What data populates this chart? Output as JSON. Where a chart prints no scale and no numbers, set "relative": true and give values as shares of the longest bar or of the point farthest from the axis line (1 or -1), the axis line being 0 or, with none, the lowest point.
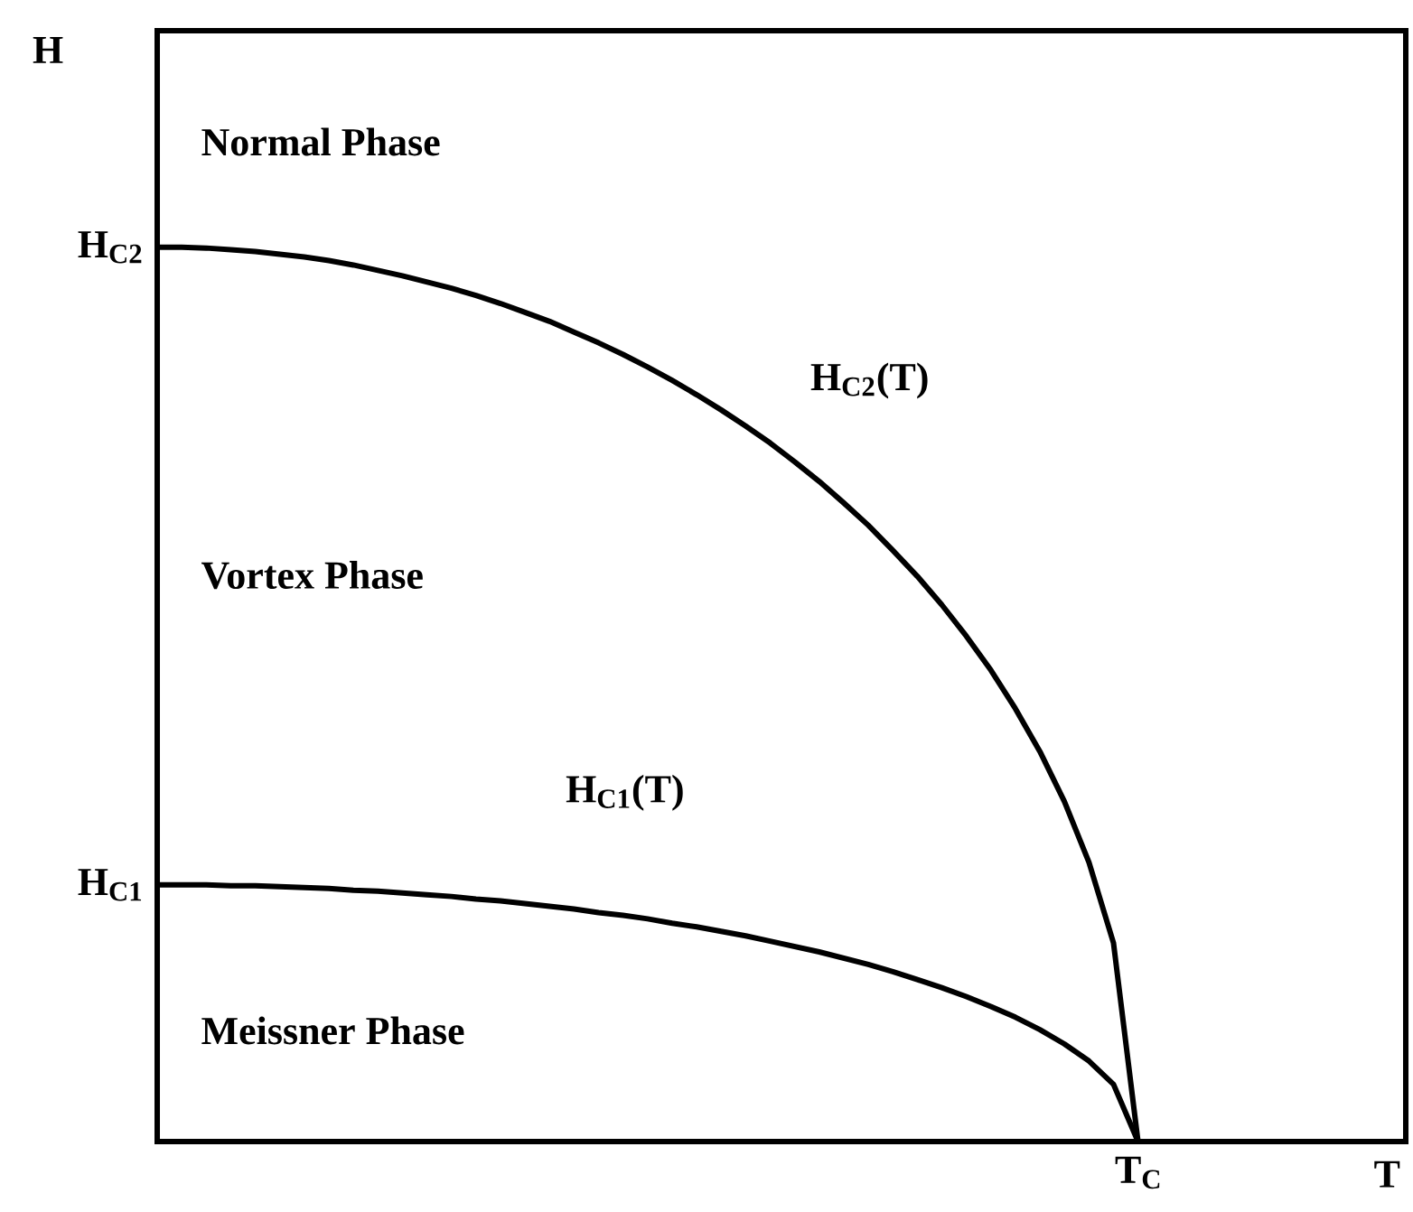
{
  "chart_data": {
    "type": "line",
    "relative": true,
    "categories": [
      null,
      null,
      null,
      null,
      null,
      null,
      null,
      null,
      null,
      null,
      null,
      null,
      null,
      null,
      null,
      null,
      null,
      null,
      null,
      null,
      null,
      null,
      null,
      null,
      null,
      null,
      null,
      null,
      null,
      null,
      null,
      null,
      null,
      null,
      null,
      null,
      null,
      null,
      null,
      null,
      null
    ],
    "series": [
      {
        "name": "H$_{C2}$(T)",
        "color": "#000000",
        "values": [
          1,
          1,
          0.999,
          0.997,
          0.995,
          0.992,
          0.989,
          0.985,
          0.98,
          0.974,
          0.968,
          0.961,
          0.954,
          0.946,
          0.937,
          0.927,
          0.917,
          0.905,
          0.893,
          0.88,
          0.866,
          0.851,
          0.835,
          0.818,
          0.8,
          0.781,
          0.76,
          0.738,
          0.714,
          0.689,
          0.661,
          0.632,
          0.6,
          0.565,
          0.527,
          0.484,
          0.436,
          0.38,
          0.312,
          0.222,
          0
        ]
      },
      {
        "name": "H$_{C1}$(T)",
        "color": "#000000",
        "values": [
          0.287,
          0.287,
          0.287,
          0.286,
          0.286,
          0.285,
          0.284,
          0.283,
          0.281,
          0.28,
          0.278,
          0.276,
          0.274,
          0.271,
          0.269,
          0.266,
          0.263,
          0.26,
          0.256,
          0.253,
          0.249,
          0.244,
          0.24,
          0.235,
          0.23,
          0.224,
          0.218,
          0.212,
          0.205,
          0.198,
          0.19,
          0.181,
          0.172,
          0.162,
          0.151,
          0.139,
          0.125,
          0.109,
          0.09,
          0.064,
          0
        ]
      }
    ],
    "annotations": [
      "Normal Phase",
      "Vortex Phase",
      "Meissner Phase",
      "H$_{C2}$",
      "H$_{C1}$",
      "T$_{C}$",
      "H",
      "T"
    ],
    "legend": false
  }
}
